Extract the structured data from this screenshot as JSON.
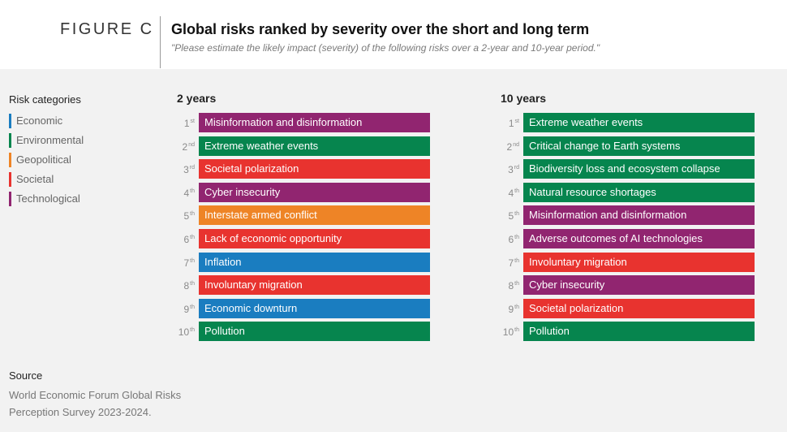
{
  "header": {
    "figure_label": "FIGURE C",
    "title": "Global risks ranked by severity over the short and long term",
    "subtitle": "\"Please estimate the likely impact (severity) of the following risks over a 2-year and 10-year period.\""
  },
  "legend": {
    "title": "Risk categories",
    "items": [
      {
        "label": "Economic",
        "color": "#1a7dc0"
      },
      {
        "label": "Environmental",
        "color": "#06854e"
      },
      {
        "label": "Geopolitical",
        "color": "#ee8426"
      },
      {
        "label": "Societal",
        "color": "#e8332f"
      },
      {
        "label": "Technological",
        "color": "#912570"
      }
    ]
  },
  "colors": {
    "Economic": "#1a7dc0",
    "Environmental": "#06854e",
    "Geopolitical": "#ee8426",
    "Societal": "#e8332f",
    "Technological": "#912570"
  },
  "columns": [
    {
      "title": "2 years",
      "rows": [
        {
          "num": "1",
          "suffix": "st",
          "label": "Misinformation and disinformation",
          "category": "Technological"
        },
        {
          "num": "2",
          "suffix": "nd",
          "label": "Extreme weather events",
          "category": "Environmental"
        },
        {
          "num": "3",
          "suffix": "rd",
          "label": "Societal polarization",
          "category": "Societal"
        },
        {
          "num": "4",
          "suffix": "th",
          "label": "Cyber insecurity",
          "category": "Technological"
        },
        {
          "num": "5",
          "suffix": "th",
          "label": "Interstate armed conflict",
          "category": "Geopolitical"
        },
        {
          "num": "6",
          "suffix": "th",
          "label": "Lack of economic opportunity",
          "category": "Societal"
        },
        {
          "num": "7",
          "suffix": "th",
          "label": "Inflation",
          "category": "Economic"
        },
        {
          "num": "8",
          "suffix": "th",
          "label": "Involuntary migration",
          "category": "Societal"
        },
        {
          "num": "9",
          "suffix": "th",
          "label": "Economic downturn",
          "category": "Economic"
        },
        {
          "num": "10",
          "suffix": "th",
          "label": "Pollution",
          "category": "Environmental"
        }
      ]
    },
    {
      "title": "10 years",
      "rows": [
        {
          "num": "1",
          "suffix": "st",
          "label": "Extreme weather events",
          "category": "Environmental"
        },
        {
          "num": "2",
          "suffix": "nd",
          "label": "Critical change to Earth systems",
          "category": "Environmental"
        },
        {
          "num": "3",
          "suffix": "rd",
          "label": "Biodiversity loss and ecosystem collapse",
          "category": "Environmental"
        },
        {
          "num": "4",
          "suffix": "th",
          "label": "Natural resource shortages",
          "category": "Environmental"
        },
        {
          "num": "5",
          "suffix": "th",
          "label": "Misinformation and disinformation",
          "category": "Technological"
        },
        {
          "num": "6",
          "suffix": "th",
          "label": "Adverse outcomes of AI technologies",
          "category": "Technological"
        },
        {
          "num": "7",
          "suffix": "th",
          "label": "Involuntary migration",
          "category": "Societal"
        },
        {
          "num": "8",
          "suffix": "th",
          "label": "Cyber insecurity",
          "category": "Technological"
        },
        {
          "num": "9",
          "suffix": "th",
          "label": "Societal polarization",
          "category": "Societal"
        },
        {
          "num": "10",
          "suffix": "th",
          "label": "Pollution",
          "category": "Environmental"
        }
      ]
    }
  ],
  "source": {
    "title": "Source",
    "text": "World Economic Forum Global Risks Perception Survey 2023-2024."
  }
}
